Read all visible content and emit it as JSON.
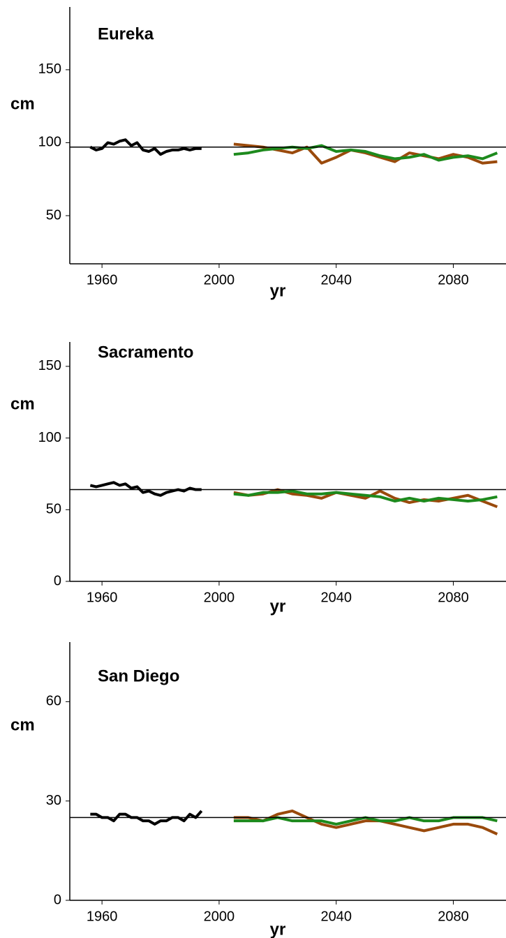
{
  "chart_data": [
    {
      "type": "line",
      "title": "Eureka",
      "y_label": "cm",
      "x_label": "yr",
      "xlim": [
        1949,
        2098
      ],
      "xticks": [
        1960,
        2000,
        2040,
        2080
      ],
      "ylim": [
        17,
        193
      ],
      "yticks": [
        50,
        100,
        150
      ],
      "hline": 97,
      "series": [
        {
          "color": "#000000",
          "x": [
            1956,
            1958,
            1960,
            1962,
            1964,
            1966,
            1968,
            1970,
            1972,
            1974,
            1976,
            1978,
            1980,
            1982,
            1984,
            1986,
            1988,
            1990,
            1992,
            1994
          ],
          "values": [
            97,
            95,
            96,
            100,
            99,
            101,
            102,
            98,
            100,
            95,
            94,
            96,
            92,
            94,
            95,
            95,
            96,
            95,
            96,
            96
          ]
        },
        {
          "color": "#9a4a0c",
          "x": [
            2005,
            2010,
            2015,
            2020,
            2025,
            2030,
            2035,
            2040,
            2045,
            2050,
            2055,
            2060,
            2065,
            2070,
            2075,
            2080,
            2085,
            2090,
            2095
          ],
          "values": [
            99,
            98,
            97,
            95,
            93,
            97,
            86,
            90,
            95,
            93,
            90,
            87,
            93,
            91,
            89,
            92,
            90,
            86,
            87
          ]
        },
        {
          "color": "#1d8a1d",
          "x": [
            2005,
            2010,
            2015,
            2020,
            2025,
            2030,
            2035,
            2040,
            2045,
            2050,
            2055,
            2060,
            2065,
            2070,
            2075,
            2080,
            2085,
            2090,
            2095
          ],
          "values": [
            92,
            93,
            95,
            96,
            97,
            96,
            98,
            94,
            95,
            94,
            91,
            89,
            90,
            92,
            88,
            90,
            91,
            89,
            93
          ]
        }
      ]
    },
    {
      "type": "line",
      "title": "Sacramento",
      "y_label": "cm",
      "x_label": "yr",
      "xlim": [
        1949,
        2098
      ],
      "xticks": [
        1960,
        2000,
        2040,
        2080
      ],
      "ylim": [
        0,
        167
      ],
      "yticks": [
        0,
        50,
        100,
        150
      ],
      "hline": 64,
      "series": [
        {
          "color": "#000000",
          "x": [
            1956,
            1958,
            1960,
            1962,
            1964,
            1966,
            1968,
            1970,
            1972,
            1974,
            1976,
            1978,
            1980,
            1982,
            1984,
            1986,
            1988,
            1990,
            1992,
            1994
          ],
          "values": [
            67,
            66,
            67,
            68,
            69,
            67,
            68,
            65,
            66,
            62,
            63,
            61,
            60,
            62,
            63,
            64,
            63,
            65,
            64,
            64
          ]
        },
        {
          "color": "#9a4a0c",
          "x": [
            2005,
            2010,
            2015,
            2020,
            2025,
            2030,
            2035,
            2040,
            2045,
            2050,
            2055,
            2060,
            2065,
            2070,
            2075,
            2080,
            2085,
            2090,
            2095
          ],
          "values": [
            62,
            60,
            61,
            64,
            61,
            60,
            58,
            62,
            60,
            58,
            63,
            58,
            55,
            57,
            56,
            58,
            60,
            56,
            52
          ]
        },
        {
          "color": "#1d8a1d",
          "x": [
            2005,
            2010,
            2015,
            2020,
            2025,
            2030,
            2035,
            2040,
            2045,
            2050,
            2055,
            2060,
            2065,
            2070,
            2075,
            2080,
            2085,
            2090,
            2095
          ],
          "values": [
            61,
            60,
            62,
            62,
            63,
            61,
            61,
            62,
            61,
            60,
            59,
            56,
            58,
            56,
            58,
            57,
            56,
            57,
            59
          ]
        }
      ]
    },
    {
      "type": "line",
      "title": "San Diego",
      "y_label": "cm",
      "x_label": "yr",
      "xlim": [
        1949,
        2098
      ],
      "xticks": [
        1960,
        2000,
        2040,
        2080
      ],
      "ylim": [
        0,
        78
      ],
      "yticks": [
        0,
        30,
        60
      ],
      "hline": 25,
      "series": [
        {
          "color": "#000000",
          "x": [
            1956,
            1958,
            1960,
            1962,
            1964,
            1966,
            1968,
            1970,
            1972,
            1974,
            1976,
            1978,
            1980,
            1982,
            1984,
            1986,
            1988,
            1990,
            1992,
            1994
          ],
          "values": [
            26,
            26,
            25,
            25,
            24,
            26,
            26,
            25,
            25,
            24,
            24,
            23,
            24,
            24,
            25,
            25,
            24,
            26,
            25,
            27
          ]
        },
        {
          "color": "#9a4a0c",
          "x": [
            2005,
            2010,
            2015,
            2020,
            2025,
            2030,
            2035,
            2040,
            2045,
            2050,
            2055,
            2060,
            2065,
            2070,
            2075,
            2080,
            2085,
            2090,
            2095
          ],
          "values": [
            25,
            25,
            24,
            26,
            27,
            25,
            23,
            22,
            23,
            24,
            24,
            23,
            22,
            21,
            22,
            23,
            23,
            22,
            20
          ]
        },
        {
          "color": "#1d8a1d",
          "x": [
            2005,
            2010,
            2015,
            2020,
            2025,
            2030,
            2035,
            2040,
            2045,
            2050,
            2055,
            2060,
            2065,
            2070,
            2075,
            2080,
            2085,
            2090,
            2095
          ],
          "values": [
            24,
            24,
            24,
            25,
            24,
            24,
            24,
            23,
            24,
            25,
            24,
            24,
            25,
            24,
            24,
            25,
            25,
            25,
            24
          ]
        }
      ]
    }
  ]
}
